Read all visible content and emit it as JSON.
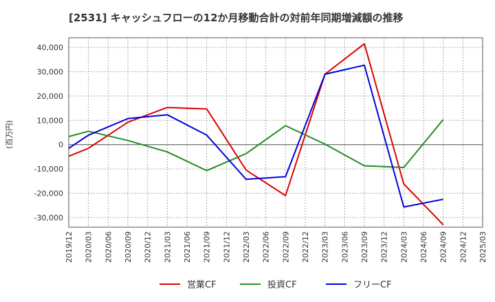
{
  "chart_data": {
    "type": "line",
    "title": "[2531]  キャッシュフローの12か月移動合計の対前年同期増減額の推移",
    "ylabel": "(百万円)",
    "xlabel": "",
    "x": [
      "2019/12",
      "2020/03",
      "2020/06",
      "2020/09",
      "2020/12",
      "2021/03",
      "2021/06",
      "2021/09",
      "2021/12",
      "2022/03",
      "2022/06",
      "2022/09",
      "2022/12",
      "2023/03",
      "2023/06",
      "2023/09",
      "2023/12",
      "2024/03",
      "2024/06",
      "2024/09",
      "2024/12",
      "2025/03"
    ],
    "ylim": [
      -34000,
      44000
    ],
    "yticks": [
      -30000,
      -20000,
      -10000,
      0,
      10000,
      20000,
      30000,
      40000
    ],
    "ytick_labels": [
      "-30,000",
      "-20,000",
      "-10,000",
      "0",
      "10,000",
      "20,000",
      "30,000",
      "40,000"
    ],
    "grid": true,
    "legend_position": "bottom",
    "series": [
      {
        "name": "営業CF",
        "color": "#dd0000",
        "points": [
          [
            "2019/12",
            -4800
          ],
          [
            "2020/03",
            -1500
          ],
          [
            "2020/09",
            9200
          ],
          [
            "2021/03",
            15300
          ],
          [
            "2021/09",
            14700
          ],
          [
            "2022/03",
            -10500
          ],
          [
            "2022/09",
            -21000
          ],
          [
            "2023/03",
            29000
          ],
          [
            "2023/09",
            41500
          ],
          [
            "2024/03",
            -16200
          ],
          [
            "2024/09",
            -33000
          ]
        ]
      },
      {
        "name": "投資CF",
        "color": "#228b22",
        "points": [
          [
            "2019/12",
            3300
          ],
          [
            "2020/03",
            5500
          ],
          [
            "2020/09",
            1700
          ],
          [
            "2021/03",
            -3000
          ],
          [
            "2021/09",
            -10700
          ],
          [
            "2022/03",
            -3700
          ],
          [
            "2022/09",
            7800
          ],
          [
            "2023/03",
            200
          ],
          [
            "2023/09",
            -8700
          ],
          [
            "2024/03",
            -9400
          ],
          [
            "2024/09",
            10300
          ]
        ]
      },
      {
        "name": "フリーCF",
        "color": "#0000dd",
        "points": [
          [
            "2019/12",
            -1500
          ],
          [
            "2020/03",
            3900
          ],
          [
            "2020/09",
            10700
          ],
          [
            "2021/03",
            12300
          ],
          [
            "2021/09",
            3900
          ],
          [
            "2022/03",
            -14300
          ],
          [
            "2022/09",
            -13200
          ],
          [
            "2023/03",
            29000
          ],
          [
            "2023/09",
            32700
          ],
          [
            "2024/03",
            -25700
          ],
          [
            "2024/09",
            -22500
          ]
        ]
      }
    ]
  }
}
